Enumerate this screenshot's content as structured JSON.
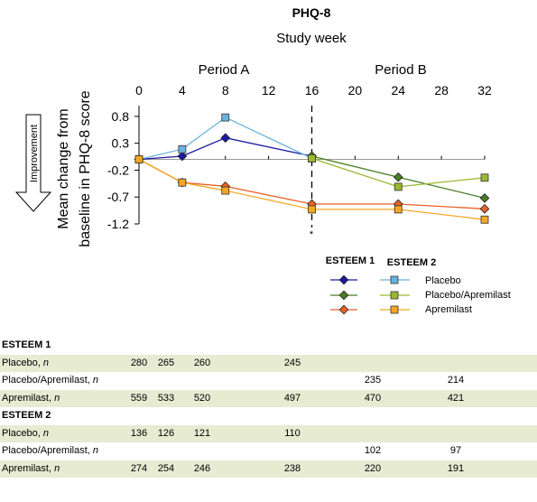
{
  "chart_data": {
    "type": "line",
    "title": "PHQ-8",
    "subtitle": "Study week",
    "ylabel": "Mean change from baseline in PHQ-8 score",
    "improvement_label": "Improvement",
    "period_labels": [
      "Period A",
      "Period B"
    ],
    "x_ticks": [
      0,
      4,
      8,
      12,
      16,
      20,
      24,
      28,
      32
    ],
    "y_ticks": [
      0.8,
      0.3,
      -0.2,
      -0.7,
      -1.2
    ],
    "y_tick_labels": [
      "0.8",
      "0.3",
      "-0.2",
      "-0.7",
      "-1.2"
    ],
    "xlim": [
      0,
      32
    ],
    "ylim": [
      -1.2,
      1.0
    ],
    "divider_week": 16,
    "asterisk": "*",
    "legend": {
      "col1": "ESTEEM 1",
      "col2": "ESTEEM 2",
      "entries": [
        "Placebo",
        "Placebo/Apremilast",
        "Apremilast"
      ]
    },
    "series": [
      {
        "name": "Placebo",
        "trial": "ESTEEM 1",
        "marker": "diamond",
        "color": "#1a1aa0",
        "points": [
          [
            0,
            0.0
          ],
          [
            4,
            0.06
          ],
          [
            8,
            0.4
          ],
          [
            16,
            0.06
          ]
        ]
      },
      {
        "name": "Placebo/Apremilast",
        "trial": "ESTEEM 1",
        "marker": "diamond",
        "color": "#4a7d22",
        "points": [
          [
            16,
            0.06
          ],
          [
            24,
            -0.33
          ],
          [
            32,
            -0.72
          ]
        ]
      },
      {
        "name": "Apremilast",
        "trial": "ESTEEM 1",
        "marker": "diamond",
        "color": "#e8622a",
        "points": [
          [
            0,
            0.0
          ],
          [
            4,
            -0.43
          ],
          [
            8,
            -0.5
          ],
          [
            16,
            -0.83
          ],
          [
            24,
            -0.83
          ],
          [
            32,
            -0.92
          ]
        ]
      },
      {
        "name": "Placebo",
        "trial": "ESTEEM 2",
        "marker": "square",
        "color": "#6ab2de",
        "points": [
          [
            0,
            0.0
          ],
          [
            4,
            0.19
          ],
          [
            8,
            0.78
          ],
          [
            16,
            0.02
          ]
        ]
      },
      {
        "name": "Placebo/Apremilast",
        "trial": "ESTEEM 2",
        "marker": "square",
        "color": "#9ab830",
        "points": [
          [
            16,
            0.02
          ],
          [
            24,
            -0.51
          ],
          [
            32,
            -0.34
          ]
        ]
      },
      {
        "name": "Apremilast",
        "trial": "ESTEEM 2",
        "marker": "square",
        "color": "#f5a623",
        "points": [
          [
            0,
            0.0
          ],
          [
            4,
            -0.43
          ],
          [
            8,
            -0.58
          ],
          [
            16,
            -0.93
          ],
          [
            24,
            -0.93
          ],
          [
            32,
            -1.12
          ]
        ]
      }
    ]
  },
  "table": {
    "sections": [
      {
        "title": "ESTEEM 1",
        "rows": [
          {
            "label": "Placebo, ",
            "n": "n",
            "values": [
              "280",
              "265",
              "260",
              "245",
              "",
              ""
            ]
          },
          {
            "label": "Placebo/Apremilast, ",
            "n": "n",
            "values": [
              "",
              "",
              "",
              "",
              "235",
              "214"
            ]
          },
          {
            "label": "Apremilast, ",
            "n": "n",
            "values": [
              "559",
              "533",
              "520",
              "497",
              "470",
              "421"
            ]
          }
        ]
      },
      {
        "title": "ESTEEM 2",
        "rows": [
          {
            "label": "Placebo, ",
            "n": "n",
            "values": [
              "136",
              "126",
              "121",
              "110",
              "",
              ""
            ]
          },
          {
            "label": "Placebo/Apremilast, ",
            "n": "n",
            "values": [
              "",
              "",
              "",
              "",
              "102",
              "97"
            ]
          },
          {
            "label": "Apremilast, ",
            "n": "n",
            "values": [
              "274",
              "254",
              "246",
              "238",
              "220",
              "191"
            ]
          }
        ]
      }
    ]
  }
}
